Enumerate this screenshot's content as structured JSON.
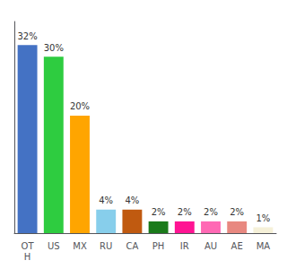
{
  "chart_data": {
    "type": "bar",
    "categories": [
      "OT\nH",
      "US",
      "MX",
      "RU",
      "CA",
      "PH",
      "IR",
      "AU",
      "AE",
      "MA"
    ],
    "values": [
      32,
      30,
      20,
      4,
      4,
      2,
      2,
      2,
      2,
      1
    ],
    "value_labels": [
      "32%",
      "30%",
      "20%",
      "4%",
      "4%",
      "2%",
      "2%",
      "2%",
      "2%",
      "1%"
    ],
    "colors": [
      "#4472C4",
      "#2ECC40",
      "#FFA500",
      "#87CEEB",
      "#C05A10",
      "#1A7A1A",
      "#FF1493",
      "#FF69B4",
      "#E88880",
      "#F5F0D8"
    ],
    "ylim": [
      0,
      36
    ],
    "grid": false,
    "data_labels": true,
    "tick_labels": "x"
  }
}
